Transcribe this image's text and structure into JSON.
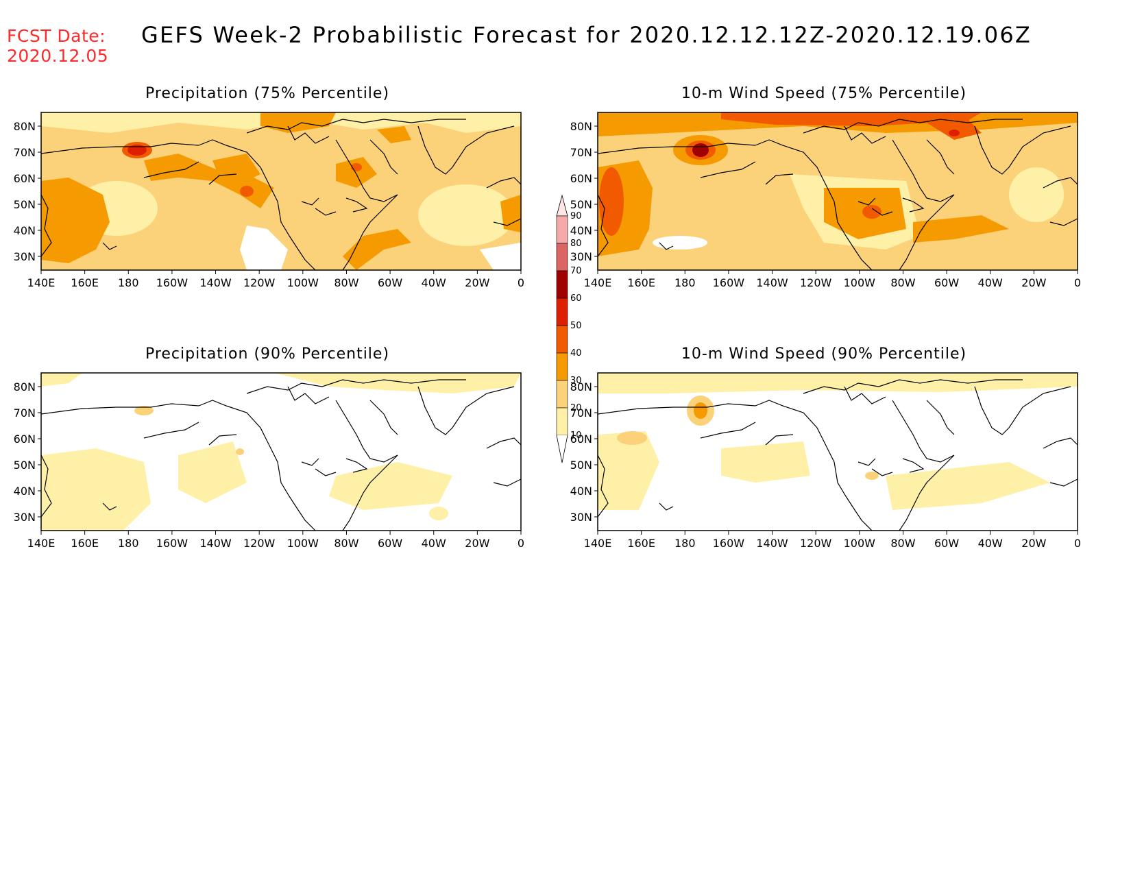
{
  "header": {
    "fcst_label": "FCST Date:",
    "fcst_date": "2020.12.05",
    "title": "GEFS Week-2 Probabilistic Forecast for 2020.12.12.12Z-2020.12.19.06Z"
  },
  "axes": {
    "x_ticks": [
      "140E",
      "160E",
      "180",
      "160W",
      "140W",
      "120W",
      "100W",
      "80W",
      "60W",
      "40W",
      "20W",
      "0"
    ],
    "y_ticks": [
      "80N",
      "70N",
      "60N",
      "50N",
      "40N",
      "30N"
    ]
  },
  "panels": [
    {
      "title": "Precipitation (75% Percentile)"
    },
    {
      "title": "10-m Wind Speed (75% Percentile)"
    },
    {
      "title": "Precipitation (90% Percentile)"
    },
    {
      "title": "10-m Wind Speed (90% Percentile)"
    }
  ],
  "legend": {
    "levels": [
      "90",
      "80",
      "70",
      "60",
      "50",
      "40",
      "30",
      "20",
      "10"
    ],
    "colors": [
      "#f7a8aa",
      "#dd6464",
      "#a00000",
      "#dd1f00",
      "#f25a00",
      "#f59a00",
      "#fbd27a",
      "#fff0a8",
      "#ffffff"
    ]
  },
  "colors": {
    "c10_20": "#fff0a8",
    "c20_30": "#fbd27a",
    "c30_40": "#f59a00",
    "c40_50": "#f25a00",
    "c50_60": "#dd1f00",
    "c60_70": "#a00000",
    "coast": "#000000"
  }
}
